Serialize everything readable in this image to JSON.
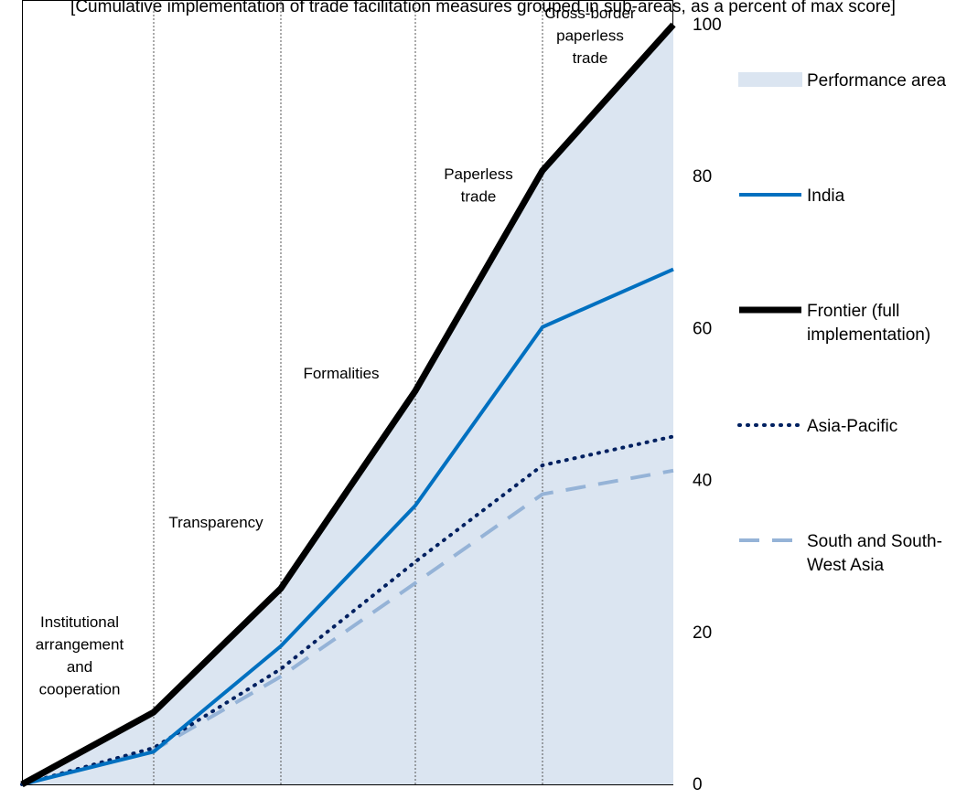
{
  "top_caption": "[Cumulative implementation of trade facilitation measures grouped in sub-areas, as a percent of max score]",
  "chart_data": {
    "type": "line",
    "categories": [
      "",
      "Institutional arrangement and cooperation",
      "Transparency",
      "Formalities",
      "Paperless trade",
      "Cross-border paperless trade"
    ],
    "stage_labels": [
      [
        "Institutional",
        "arrangement",
        "and",
        "cooperation"
      ],
      [
        "Transparency"
      ],
      [
        "Formalities"
      ],
      [
        "Paperless",
        "trade"
      ],
      [
        "Cross-border",
        "paperless",
        "trade"
      ]
    ],
    "x": [
      0,
      1,
      2,
      3,
      4,
      5
    ],
    "series": [
      {
        "name": "Performance area",
        "kind": "area",
        "color": "#dbe5f1",
        "values": [
          0,
          9.5,
          25.8,
          51.8,
          80.8,
          100
        ]
      },
      {
        "name": "India",
        "kind": "line",
        "color": "#0070c0",
        "style": "solid",
        "values": [
          0,
          4.3,
          18.2,
          36.7,
          60.2,
          67.8
        ]
      },
      {
        "name": "Frontier (full implementation)",
        "kind": "line",
        "color": "#000000",
        "style": "solid",
        "values": [
          0,
          9.5,
          25.8,
          51.8,
          80.8,
          100
        ]
      },
      {
        "name": "Asia-Pacific",
        "kind": "line",
        "color": "#002060",
        "style": "dotted",
        "values": [
          0,
          4.8,
          15.2,
          29.3,
          42,
          45.8
        ]
      },
      {
        "name": "South and South-West Asia",
        "kind": "line",
        "color": "#95b3d7",
        "style": "dashed",
        "values": [
          0,
          4.5,
          14.2,
          26.5,
          38.2,
          41.3
        ]
      }
    ],
    "legend_labels": [
      [
        "Performance area"
      ],
      [
        "India"
      ],
      [
        "Frontier (full",
        "implementation)"
      ],
      [
        "Asia-Pacific"
      ],
      [
        "South and South-",
        "West Asia"
      ]
    ],
    "y_ticks": [
      "0",
      "20",
      "40",
      "60",
      "80",
      "100"
    ],
    "ylim": [
      0,
      100
    ],
    "y_axis_side": "right",
    "grid": false,
    "stage_dividers": "dashed-vertical",
    "legend_position": "right"
  }
}
